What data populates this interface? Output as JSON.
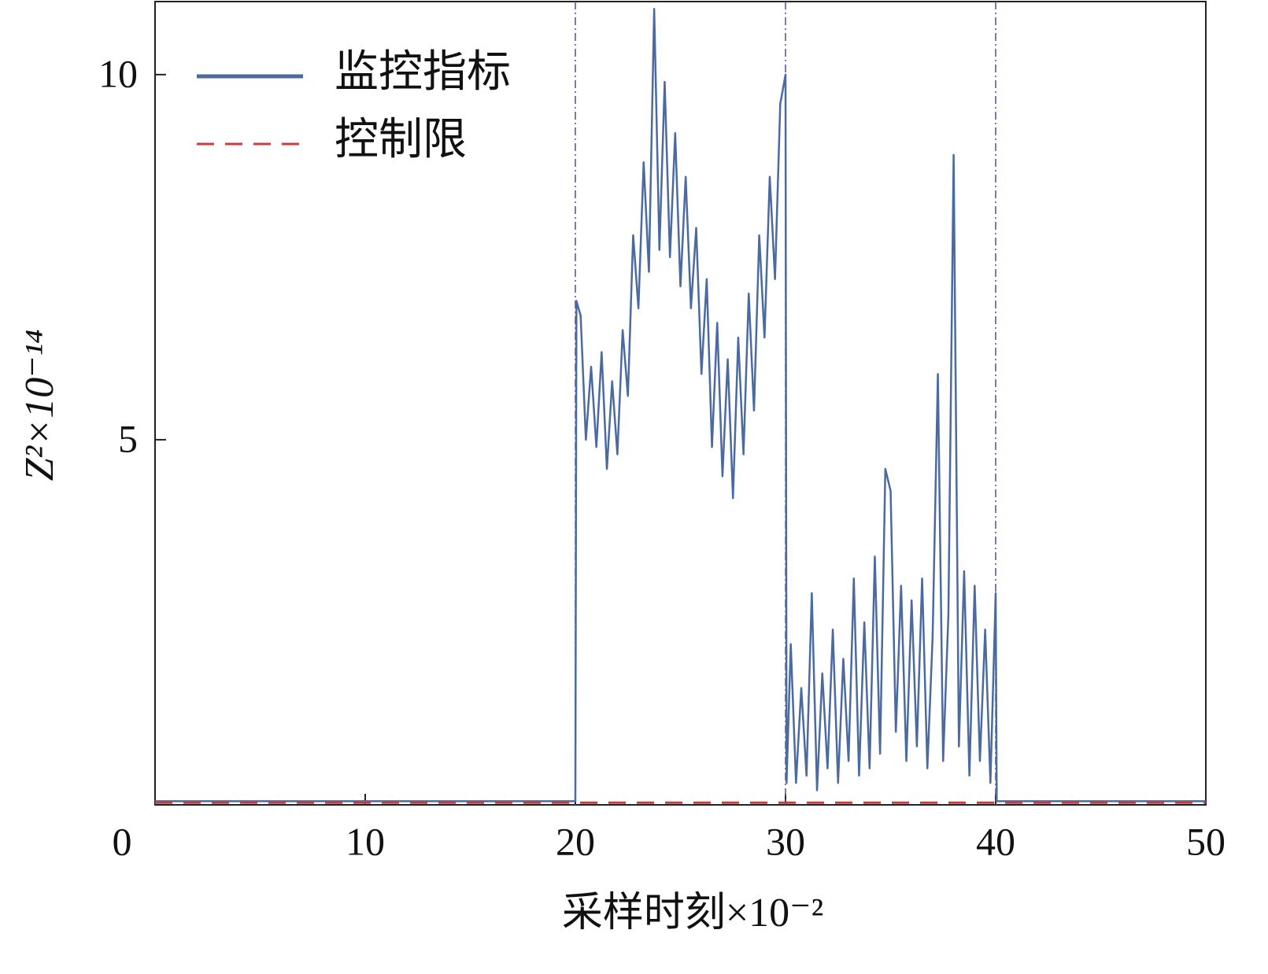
{
  "chart_data": {
    "type": "line",
    "xlabel": "采样时刻×10⁻²",
    "ylabel": "Z²×10⁻¹⁴",
    "xlim": [
      0,
      50
    ],
    "xticks": [
      0,
      10,
      20,
      30,
      40,
      50
    ],
    "ylim": [
      0,
      11
    ],
    "yticks": [
      5,
      10
    ],
    "vlines": [
      20,
      30,
      40
    ],
    "vline_color": "#5a4a8a",
    "legend": "upper-left",
    "series": [
      {
        "name": "监控指标",
        "color": "#4a6aa0",
        "dash": false,
        "x": [
          0,
          20,
          20.05,
          20.25,
          20.5,
          20.75,
          21,
          21.25,
          21.5,
          21.75,
          22,
          22.25,
          22.5,
          22.75,
          23,
          23.25,
          23.5,
          23.75,
          24,
          24.25,
          24.5,
          24.75,
          25,
          25.25,
          25.5,
          25.75,
          26,
          26.25,
          26.5,
          26.75,
          27,
          27.25,
          27.5,
          27.75,
          28,
          28.25,
          28.5,
          28.75,
          29,
          29.25,
          29.5,
          29.75,
          30,
          30.05,
          30.25,
          30.5,
          30.75,
          31,
          31.25,
          31.5,
          31.75,
          32,
          32.25,
          32.5,
          32.75,
          33,
          33.25,
          33.5,
          33.75,
          34,
          34.25,
          34.5,
          34.75,
          35,
          35.25,
          35.5,
          35.75,
          36,
          36.25,
          36.5,
          36.75,
          37,
          37.25,
          37.5,
          37.75,
          38,
          38.25,
          38.5,
          38.75,
          39,
          39.25,
          39.5,
          39.75,
          40,
          40.05,
          50
        ],
        "values": [
          0.05,
          0.05,
          6.9,
          6.7,
          5.0,
          6.0,
          4.9,
          6.2,
          4.6,
          5.8,
          4.8,
          6.5,
          5.6,
          7.8,
          6.8,
          8.8,
          7.3,
          10.9,
          7.6,
          9.9,
          7.5,
          9.2,
          7.1,
          8.6,
          6.8,
          7.9,
          5.9,
          7.2,
          4.9,
          6.6,
          4.5,
          6.1,
          4.2,
          6.4,
          4.8,
          7.0,
          5.4,
          7.8,
          6.4,
          8.6,
          7.2,
          9.6,
          10.0,
          0.3,
          2.2,
          0.3,
          1.6,
          0.4,
          2.9,
          0.2,
          1.8,
          0.5,
          2.4,
          0.3,
          2.0,
          0.6,
          3.1,
          0.4,
          2.5,
          0.5,
          3.4,
          0.7,
          4.6,
          4.3,
          1.0,
          3.0,
          0.6,
          2.8,
          0.8,
          3.1,
          0.5,
          2.3,
          5.9,
          0.6,
          2.6,
          8.9,
          0.8,
          3.2,
          0.4,
          3.0,
          0.6,
          2.4,
          0.3,
          2.9,
          0.05,
          0.05
        ]
      },
      {
        "name": "控制限",
        "color": "#d03a3a",
        "dash": true,
        "x": [
          0,
          50
        ],
        "values": [
          0.03,
          0.03
        ]
      }
    ]
  }
}
